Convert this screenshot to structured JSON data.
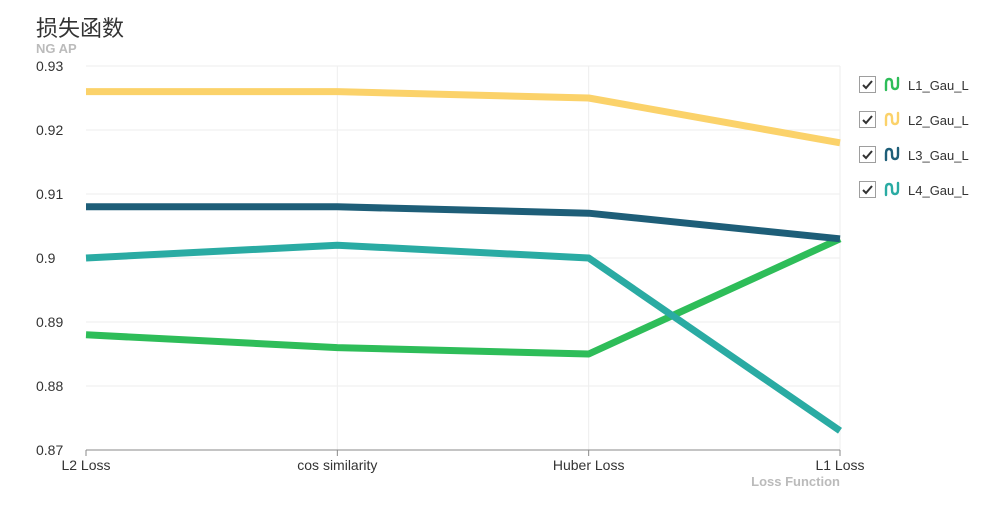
{
  "chart_data": {
    "type": "line",
    "title": "损失函数",
    "ylabel": "NG AP",
    "xlabel": "Loss Function",
    "categories": [
      "L2 Loss",
      "cos similarity",
      "Huber Loss",
      "L1 Loss"
    ],
    "ylim": [
      0.87,
      0.93
    ],
    "yticks": [
      "0.87",
      "0.88",
      "0.89",
      "0.9",
      "0.91",
      "0.92",
      "0.93"
    ],
    "grid": true,
    "legend_position": "right",
    "series": [
      {
        "name": "L1_Gau_L",
        "color": "#2ebd59",
        "values": [
          0.888,
          0.886,
          0.885,
          0.903
        ]
      },
      {
        "name": "L2_Gau_L",
        "color": "#fbd26a",
        "values": [
          0.926,
          0.926,
          0.925,
          0.918
        ]
      },
      {
        "name": "L3_Gau_L",
        "color": "#1e5e78",
        "values": [
          0.908,
          0.908,
          0.907,
          0.903
        ]
      },
      {
        "name": "L4_Gau_L",
        "color": "#2aaba3",
        "values": [
          0.9,
          0.902,
          0.9,
          0.873
        ]
      }
    ]
  }
}
